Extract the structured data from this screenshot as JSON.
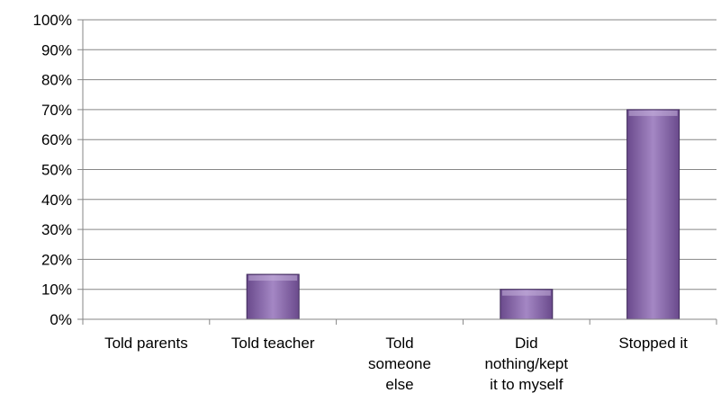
{
  "chart_data": {
    "type": "bar",
    "categories": [
      [
        "Told parents"
      ],
      [
        "Told teacher"
      ],
      [
        "Told",
        "someone",
        "else"
      ],
      [
        "Did",
        "nothing/kept",
        "it to myself"
      ],
      [
        "Stopped it"
      ]
    ],
    "values": [
      0,
      15,
      0,
      10,
      70
    ],
    "ylim": [
      0,
      100
    ],
    "yticks": [
      "0%",
      "10%",
      "20%",
      "30%",
      "40%",
      "50%",
      "60%",
      "70%",
      "80%",
      "90%",
      "100%"
    ],
    "grid": true,
    "legend": "none",
    "colors": {
      "bar_fill_light": "#a487c4",
      "bar_fill_dark": "#6a4a8c",
      "bar_edge": "#3f2a5a",
      "grid": "#868686",
      "axis": "#868686"
    }
  }
}
